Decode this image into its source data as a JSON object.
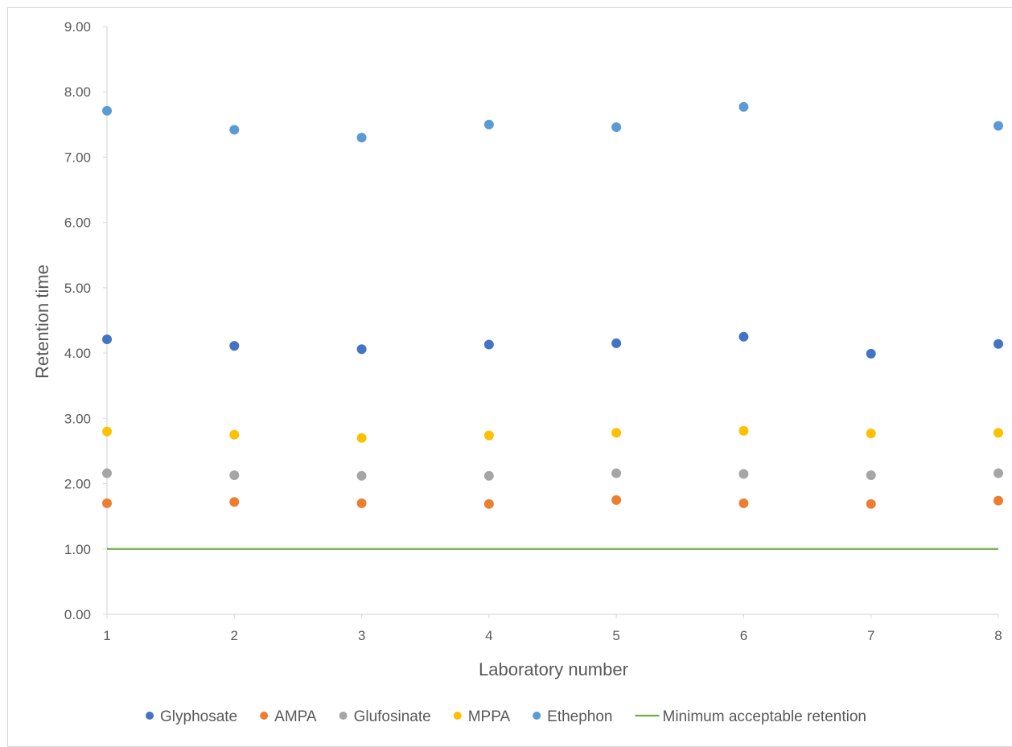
{
  "chart_data": {
    "type": "scatter",
    "title": "",
    "xlabel": "Laboratory number",
    "ylabel": "Retention time",
    "x": [
      1,
      2,
      3,
      4,
      5,
      6,
      7,
      8
    ],
    "x_tick_labels": [
      "1",
      "2",
      "3",
      "4",
      "5",
      "6",
      "7",
      "8"
    ],
    "xlim": [
      1,
      8
    ],
    "ylim": [
      0,
      9
    ],
    "y_tick_labels": [
      "0.00",
      "1.00",
      "2.00",
      "3.00",
      "4.00",
      "5.00",
      "6.00",
      "7.00",
      "8.00",
      "9.00"
    ],
    "grid": false,
    "legend_position": "bottom",
    "series": [
      {
        "name": "Glyphosate",
        "kind": "markers",
        "color": "#4472c4",
        "values": [
          4.21,
          4.11,
          4.06,
          4.13,
          4.15,
          4.25,
          3.99,
          4.14
        ]
      },
      {
        "name": "AMPA",
        "kind": "markers",
        "color": "#ed7d31",
        "values": [
          1.7,
          1.72,
          1.7,
          1.69,
          1.75,
          1.7,
          1.69,
          1.74
        ]
      },
      {
        "name": "Glufosinate",
        "kind": "markers",
        "color": "#a5a5a5",
        "values": [
          2.16,
          2.13,
          2.12,
          2.12,
          2.16,
          2.15,
          2.13,
          2.16
        ]
      },
      {
        "name": "MPPA",
        "kind": "markers",
        "color": "#ffc000",
        "values": [
          2.8,
          2.75,
          2.7,
          2.74,
          2.78,
          2.81,
          2.77,
          2.78
        ]
      },
      {
        "name": "Ethephon",
        "kind": "markers",
        "color": "#5b9bd5",
        "values": [
          7.71,
          7.42,
          7.3,
          7.5,
          7.46,
          7.77,
          null,
          7.48
        ]
      },
      {
        "name": "Minimum acceptable retention",
        "kind": "line",
        "color": "#70ad47",
        "values": [
          1.0,
          1.0,
          1.0,
          1.0,
          1.0,
          1.0,
          1.0,
          1.0
        ]
      }
    ]
  }
}
